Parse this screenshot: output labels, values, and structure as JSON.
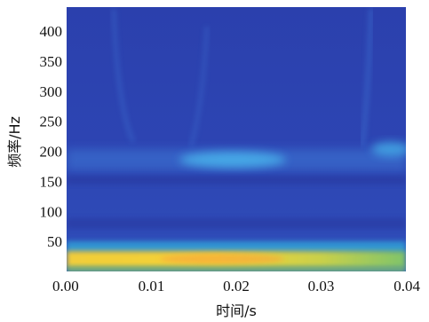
{
  "chart_data": {
    "type": "heatmap",
    "title": "",
    "xlabel": "时间/s",
    "ylabel": "频率/Hz",
    "xlim": [
      0.0,
      0.04
    ],
    "ylim": [
      0,
      440
    ],
    "x_ticks": [
      "0.00",
      "0.01",
      "0.02",
      "0.03",
      "0.04"
    ],
    "x_tick_values": [
      0.0,
      0.01,
      0.02,
      0.03,
      0.04
    ],
    "y_ticks": [
      "50",
      "100",
      "150",
      "200",
      "250",
      "300",
      "350",
      "400"
    ],
    "y_tick_values": [
      50,
      100,
      150,
      200,
      250,
      300,
      350,
      400
    ],
    "colormap": "parula",
    "colors": {
      "low": "#2d3ea8",
      "mid": "#3b9ee0",
      "high": "#f2d235",
      "background": "#2e43b0"
    },
    "bands": [
      {
        "t": [
          0.0,
          0.04
        ],
        "f": [
          18,
          36
        ],
        "intensity": 0.92
      },
      {
        "t": [
          0.0,
          0.04
        ],
        "f": [
          38,
          48
        ],
        "intensity": 0.55
      },
      {
        "t": [
          0.0,
          0.04
        ],
        "f": [
          160,
          195
        ],
        "intensity": 0.3
      },
      {
        "t": [
          0.014,
          0.025
        ],
        "f": [
          175,
          190
        ],
        "intensity": 0.55
      },
      {
        "t": [
          0.036,
          0.04
        ],
        "f": [
          190,
          210
        ],
        "intensity": 0.5
      }
    ]
  }
}
